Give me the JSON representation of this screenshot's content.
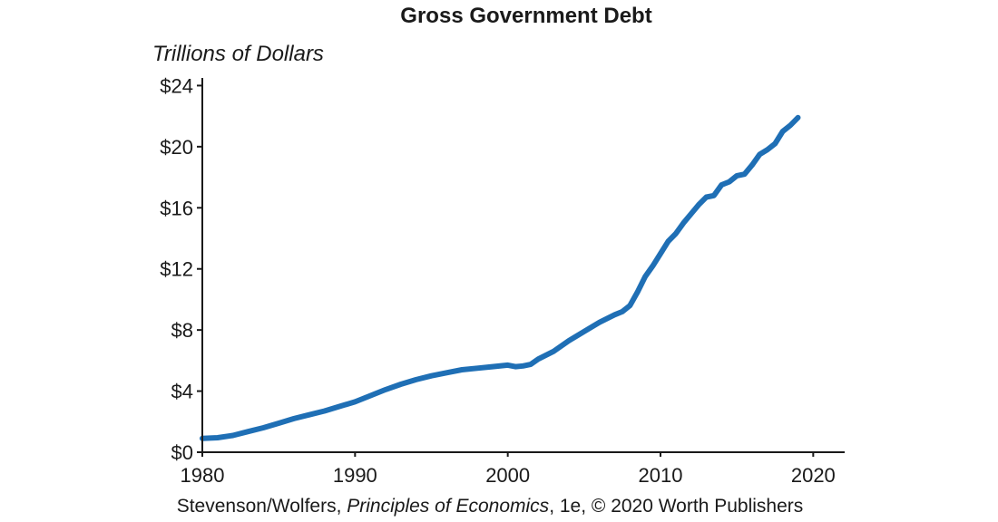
{
  "chart_data": {
    "type": "line",
    "title": "Gross Government Debt",
    "ylabel": "Trillions of Dollars",
    "xlabel": "",
    "xlim": [
      1980,
      2022
    ],
    "ylim": [
      0,
      24.5
    ],
    "x_ticks": [
      1980,
      1990,
      2000,
      2010,
      2020
    ],
    "x_tick_labels": [
      "1980",
      "1990",
      "2000",
      "2010",
      "2020"
    ],
    "y_ticks": [
      0,
      4,
      8,
      12,
      16,
      20,
      24
    ],
    "y_tick_labels": [
      "$0",
      "$4",
      "$8",
      "$12",
      "$16",
      "$20",
      "$24"
    ],
    "grid": false,
    "series": [
      {
        "color": "#1f6fb5",
        "x": [
          1980,
          1981,
          1982,
          1983,
          1984,
          1985,
          1986,
          1987,
          1988,
          1989,
          1990,
          1991,
          1992,
          1993,
          1994,
          1995,
          1996,
          1997,
          1998,
          1999,
          2000,
          2000.5,
          2001,
          2001.5,
          2002,
          2003,
          2004,
          2005,
          2006,
          2007,
          2007.5,
          2008,
          2008.5,
          2009,
          2009.5,
          2010,
          2010.5,
          2011,
          2011.5,
          2012,
          2012.5,
          2013,
          2013.5,
          2014,
          2014.5,
          2015,
          2015.5,
          2016,
          2016.5,
          2017,
          2017.5,
          2018,
          2018.5,
          2019
        ],
        "values": [
          0.9,
          0.95,
          1.1,
          1.35,
          1.6,
          1.9,
          2.2,
          2.45,
          2.7,
          3.0,
          3.3,
          3.7,
          4.1,
          4.45,
          4.75,
          5.0,
          5.2,
          5.4,
          5.5,
          5.6,
          5.7,
          5.6,
          5.65,
          5.75,
          6.1,
          6.6,
          7.3,
          7.9,
          8.5,
          9.0,
          9.2,
          9.6,
          10.5,
          11.5,
          12.2,
          13.0,
          13.8,
          14.3,
          15.0,
          15.6,
          16.2,
          16.7,
          16.8,
          17.5,
          17.7,
          18.1,
          18.2,
          18.8,
          19.5,
          19.8,
          20.2,
          21.0,
          21.4,
          21.9
        ]
      }
    ]
  },
  "caption": {
    "prefix": "Stevenson/Wolfers, ",
    "title": "Principles of Economics",
    "suffix": ", 1e, © 2020 Worth Publishers"
  }
}
